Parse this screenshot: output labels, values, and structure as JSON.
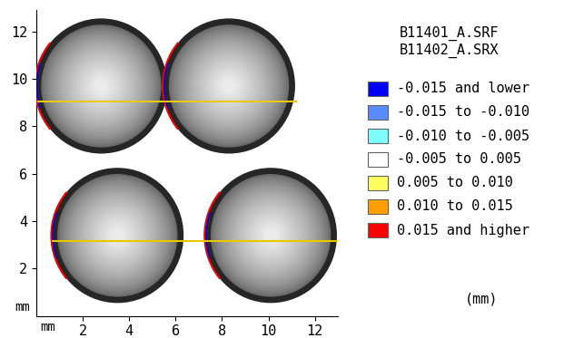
{
  "chart_data": {
    "type": "surface_deviation_map",
    "title": "B11401_A.SRF",
    "subtitle": "B11402_A.SRX",
    "x_label": "mm",
    "y_label": "mm",
    "xlim": [
      0,
      13
    ],
    "ylim": [
      0,
      12.9
    ],
    "xticks": [
      2,
      4,
      6,
      8,
      10,
      12
    ],
    "yticks": [
      2,
      4,
      6,
      8,
      10,
      12
    ],
    "spheres": [
      {
        "center": [
          2.8,
          9.7
        ],
        "radius": 2.85
      },
      {
        "center": [
          8.3,
          9.7
        ],
        "radius": 2.85
      },
      {
        "center": [
          3.5,
          3.4
        ],
        "radius": 2.85
      },
      {
        "center": [
          10.1,
          3.4
        ],
        "radius": 2.85
      }
    ],
    "seams": [
      {
        "y": 9.05,
        "x": [
          0.1,
          11.2
        ]
      },
      {
        "y": 3.15,
        "x": [
          0.7,
          13
        ]
      }
    ],
    "legend_bins": [
      {
        "label": "-0.015 and lower",
        "color": "#0000ff"
      },
      {
        "label": "-0.015 to -0.010",
        "color": "#5a8cff"
      },
      {
        "label": "-0.010 to -0.005",
        "color": "#80ffff"
      },
      {
        "label": "-0.005 to 0.005",
        "color": "#ffffff"
      },
      {
        "label": "0.005 to 0.010",
        "color": "#ffff60"
      },
      {
        "label": "0.010 to 0.015",
        "color": "#ffa000"
      },
      {
        "label": "0.015 and higher",
        "color": "#ff0000"
      }
    ],
    "legend_unit": "(mm)"
  }
}
